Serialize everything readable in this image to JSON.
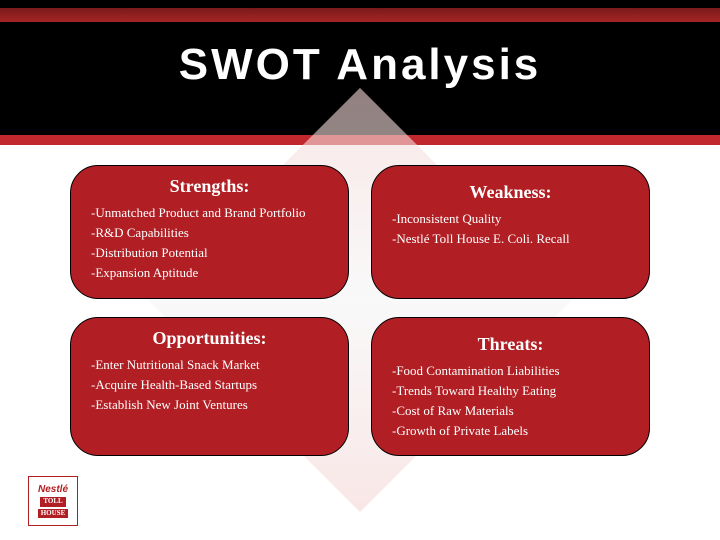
{
  "title": "SWOT Analysis",
  "colors": {
    "header_bg": "#000000",
    "accent": "#c1282d",
    "quad_bg": "#b11f24",
    "quad_text": "#ffffff",
    "page_bg": "#ffffff"
  },
  "quadrants": {
    "strengths": {
      "title": "Strengths:",
      "items": [
        "-Unmatched Product and Brand Portfolio",
        "-R&D Capabilities",
        "-Distribution Potential",
        "-Expansion Aptitude"
      ]
    },
    "weakness": {
      "title": "Weakness:",
      "items": [
        "-Inconsistent Quality",
        "-Nestlé Toll House E. Coli. Recall"
      ]
    },
    "opportunities": {
      "title": "Opportunities:",
      "items": [
        "-Enter Nutritional Snack Market",
        "-Acquire Health-Based Startups",
        "-Establish New Joint Ventures"
      ]
    },
    "threats": {
      "title": "Threats:",
      "items": [
        "-Food Contamination Liabilities",
        "-Trends Toward Healthy Eating",
        "-Cost of Raw Materials",
        "-Growth of Private Labels"
      ]
    }
  },
  "logo": {
    "brand": "Nestlé",
    "line1": "TOLL",
    "line2": "HOUSE"
  }
}
